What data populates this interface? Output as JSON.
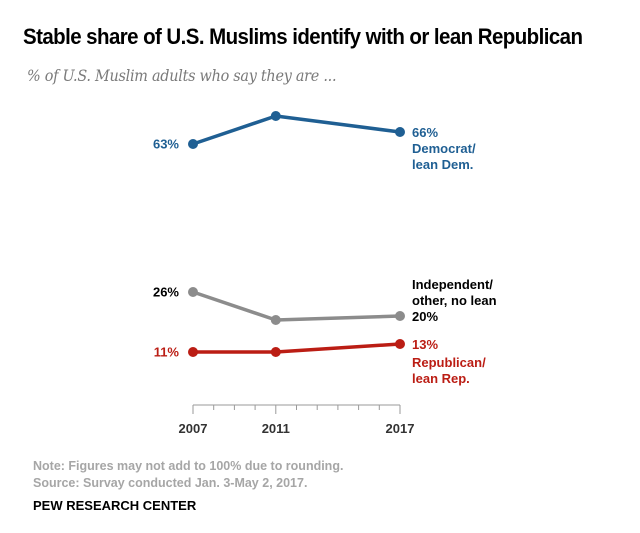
{
  "chart_data": {
    "type": "line",
    "title": "Stable share of U.S. Muslims identify with or lean Republican",
    "subtitle": "% of U.S. Muslim adults who say they are ...",
    "xlabel": "",
    "ylabel": "",
    "x": [
      2007,
      2011,
      2017
    ],
    "xlim": [
      2007,
      2017
    ],
    "ylim": [
      0,
      80
    ],
    "grid": false,
    "x_ticks": [
      2007,
      2008,
      2009,
      2010,
      2011,
      2012,
      2013,
      2014,
      2015,
      2016,
      2017
    ],
    "x_tick_labels": [
      "2007",
      "2011",
      "2017"
    ],
    "series": [
      {
        "name": "Democrat/lean Dem.",
        "label_lines": [
          "Democrat/",
          "lean Dem."
        ],
        "color": "#1f5f93",
        "values": [
          63,
          70,
          66
        ],
        "data_labels": [
          "63%",
          "",
          "66%"
        ]
      },
      {
        "name": "Independent/other, no lean",
        "label_lines": [
          "Independent/",
          "other, no lean"
        ],
        "color": "#8c8c8c",
        "label_color": "#000000",
        "values": [
          26,
          19,
          20
        ],
        "data_labels": [
          "26%",
          "",
          "20%"
        ]
      },
      {
        "name": "Republican/lean Rep.",
        "label_lines": [
          "Republican/",
          "lean Rep."
        ],
        "color": "#bb1d14",
        "values": [
          11,
          11,
          13
        ],
        "data_labels": [
          "11%",
          "",
          "13%"
        ]
      }
    ]
  },
  "notes": {
    "note": "Note: Figures may not add to 100% due to rounding.",
    "source": "Source: Survay conducted Jan. 3-May 2, 2017."
  },
  "brand": "PEW RESEARCH CENTER"
}
